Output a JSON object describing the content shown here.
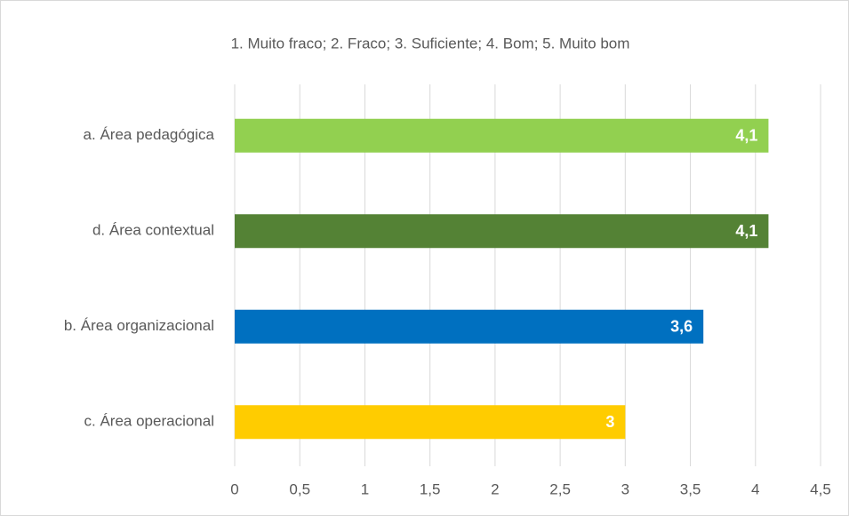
{
  "chart_data": {
    "type": "barh",
    "title": "1. Muito fraco; 2. Fraco; 3. Suficiente; 4. Bom; 5. Muito bom",
    "categories": [
      "a. Área pedagógica",
      "d. Área contextual",
      "b. Área organizacional",
      "c. Área operacional"
    ],
    "values": [
      4.1,
      4.1,
      3.6,
      3
    ],
    "value_labels": [
      "4,1",
      "4,1",
      "3,6",
      "3"
    ],
    "colors": [
      "#92d050",
      "#548235",
      "#0070c0",
      "#ffcc00"
    ],
    "xlim": [
      0,
      4.5
    ],
    "xticks": [
      0,
      {
        "value": 0.5,
        "label": "0,5"
      },
      1,
      {
        "value": 1.5,
        "label": "1,5"
      },
      2,
      {
        "value": 2.5,
        "label": "2,5"
      },
      3,
      {
        "value": 3.5,
        "label": "3,5"
      },
      4,
      {
        "value": 4.5,
        "label": "4,5"
      }
    ],
    "grid": true
  }
}
